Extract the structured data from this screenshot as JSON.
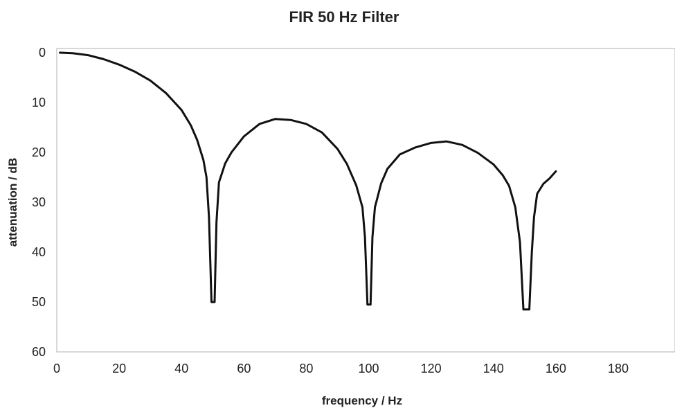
{
  "chart_data": {
    "type": "line",
    "title": "FIR 50 Hz Filter",
    "xlabel": "frequency / Hz",
    "ylabel": "attenuation / dB",
    "xlim": [
      0,
      180
    ],
    "ylim": [
      0,
      60
    ],
    "y_inverted": true,
    "grid": false,
    "legend": "none",
    "x_ticks": [
      "0",
      "20",
      "40",
      "60",
      "80",
      "100",
      "120",
      "140",
      "160",
      "180"
    ],
    "y_ticks": [
      "0",
      "10",
      "20",
      "30",
      "40",
      "50",
      "60"
    ],
    "line_color": "#111111",
    "series": [
      {
        "x": [
          1,
          5,
          10,
          15,
          20,
          25,
          30,
          35,
          40,
          43,
          45,
          47,
          48,
          48.8,
          49.6,
          50.6,
          51.2,
          52,
          54,
          56,
          60,
          65,
          70,
          75,
          80,
          85,
          90,
          93,
          96,
          98,
          98.8,
          99.6,
          100.6,
          101.2,
          102,
          104,
          106,
          110,
          115,
          120,
          125,
          130,
          135,
          140,
          143,
          145,
          147,
          148.5,
          149.6,
          151.5,
          152.3,
          153,
          154,
          156,
          158,
          160
        ],
        "y": [
          0,
          0.1,
          0.5,
          1.3,
          2.4,
          3.8,
          5.6,
          8.1,
          11.5,
          14.6,
          17.5,
          21.5,
          25,
          33,
          50,
          50,
          34,
          26,
          22.2,
          20,
          16.8,
          14.3,
          13.3,
          13.5,
          14.3,
          16,
          19.3,
          22.3,
          26.6,
          31,
          37,
          50.5,
          50.5,
          37,
          31,
          26.2,
          23.3,
          20.4,
          19,
          18.1,
          17.8,
          18.5,
          20.1,
          22.4,
          24.6,
          26.7,
          31,
          38,
          51.5,
          51.5,
          40,
          33,
          28.3,
          26.3,
          25.2,
          23.8
        ]
      }
    ]
  }
}
